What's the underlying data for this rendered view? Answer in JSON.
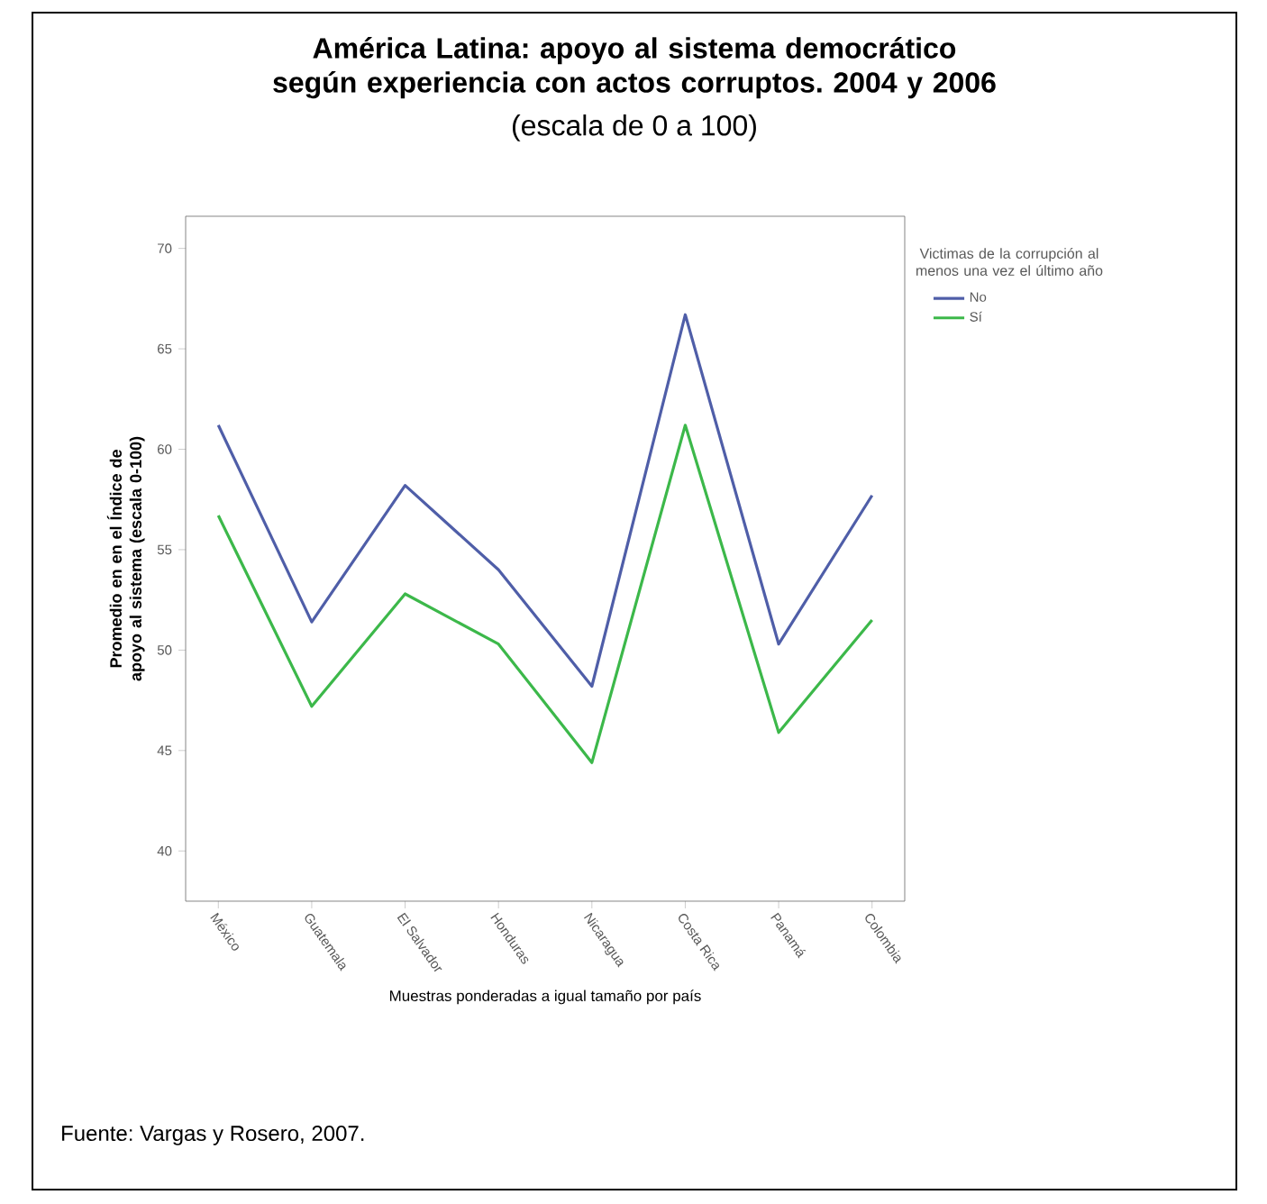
{
  "chart_data": {
    "type": "line",
    "title": "América Latina: apoyo al sistema democrático según experiencia con actos corruptos. 2004 y 2006",
    "subtitle": "(escala de 0 a 100)",
    "xlabel": "Muestras ponderadas a igual tamaño por país",
    "ylabel": "Promedio en en el Índice de apoyo al sistema (escala 0-100)",
    "legend_title": "Victimas de la corrupción al menos una vez el último año",
    "categories": [
      "México",
      "Guatemala",
      "El Salvador",
      "Honduras",
      "Nicaragua",
      "Costa Rica",
      "Panamá",
      "Colombia"
    ],
    "series": [
      {
        "name": "No",
        "color": "#4f5ea8",
        "values": [
          61.2,
          51.4,
          58.2,
          54.0,
          48.2,
          66.7,
          50.3,
          57.7
        ]
      },
      {
        "name": "Sí",
        "color": "#3cb84a",
        "values": [
          56.7,
          47.2,
          52.8,
          50.3,
          44.4,
          61.2,
          45.9,
          51.5
        ]
      }
    ],
    "ylim": [
      37.5,
      71.6
    ],
    "yticks": [
      40,
      45,
      50,
      55,
      60,
      65,
      70
    ],
    "grid": false,
    "legend": "top right",
    "marker": "none",
    "line_style": "solid",
    "annotations": [
      "Fuente: Vargas y Rosero, 2007."
    ]
  }
}
